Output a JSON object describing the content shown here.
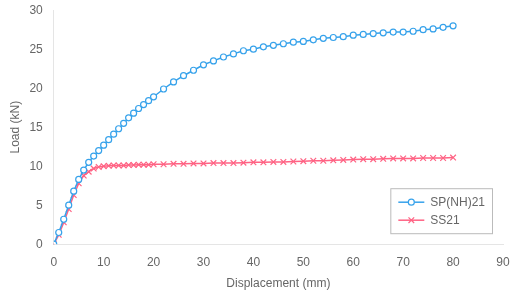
{
  "chart_data": {
    "type": "line",
    "xlabel": "Displacement (mm)",
    "ylabel": "Load (kN)",
    "xlim": [
      0,
      90
    ],
    "ylim": [
      0,
      30
    ],
    "xticks": [
      0,
      10,
      20,
      30,
      40,
      50,
      60,
      70,
      80,
      90
    ],
    "yticks": [
      0,
      5,
      10,
      15,
      20,
      25,
      30
    ],
    "grid": false,
    "legend": "lower right",
    "series": [
      {
        "name": "SP(NH)21",
        "marker": "circle",
        "x": [
          0,
          1,
          2,
          3,
          4,
          5,
          6,
          7,
          8,
          9,
          10,
          11,
          12,
          13,
          14,
          15,
          16,
          17,
          18,
          19,
          20,
          22,
          24,
          26,
          28,
          30,
          32,
          34,
          36,
          38,
          40,
          42,
          44,
          46,
          48,
          50,
          52,
          54,
          56,
          58,
          60,
          62,
          64,
          66,
          68,
          70,
          72,
          74,
          76,
          78,
          80
        ],
        "values": [
          0,
          1.5,
          3.2,
          5.0,
          6.8,
          8.3,
          9.5,
          10.5,
          11.3,
          12.0,
          12.7,
          13.4,
          14.1,
          14.8,
          15.5,
          16.2,
          16.8,
          17.4,
          17.9,
          18.4,
          18.9,
          19.9,
          20.8,
          21.6,
          22.3,
          23.0,
          23.5,
          24.0,
          24.4,
          24.8,
          25.0,
          25.3,
          25.5,
          25.7,
          25.9,
          26.0,
          26.2,
          26.4,
          26.5,
          26.6,
          26.8,
          26.9,
          27.0,
          27.1,
          27.2,
          27.2,
          27.3,
          27.5,
          27.6,
          27.8,
          28.0
        ]
      },
      {
        "name": "SS21",
        "marker": "x",
        "x": [
          0,
          1,
          2,
          3,
          4,
          5,
          6,
          7,
          8,
          9,
          10,
          11,
          12,
          13,
          14,
          15,
          16,
          17,
          18,
          19,
          20,
          22,
          24,
          26,
          28,
          30,
          32,
          34,
          36,
          38,
          40,
          42,
          44,
          46,
          48,
          50,
          52,
          54,
          56,
          58,
          60,
          62,
          64,
          66,
          68,
          70,
          72,
          74,
          76,
          78,
          80
        ],
        "values": [
          0,
          1.2,
          2.8,
          4.5,
          6.3,
          7.8,
          8.8,
          9.3,
          9.7,
          9.9,
          10.0,
          10.05,
          10.1,
          10.1,
          10.1,
          10.15,
          10.15,
          10.2,
          10.2,
          10.2,
          10.25,
          10.25,
          10.3,
          10.3,
          10.35,
          10.35,
          10.4,
          10.4,
          10.4,
          10.45,
          10.5,
          10.5,
          10.55,
          10.55,
          10.6,
          10.65,
          10.7,
          10.7,
          10.75,
          10.8,
          10.85,
          10.9,
          10.9,
          10.95,
          11.0,
          11.0,
          11.0,
          11.05,
          11.05,
          11.05,
          11.1
        ]
      }
    ]
  }
}
